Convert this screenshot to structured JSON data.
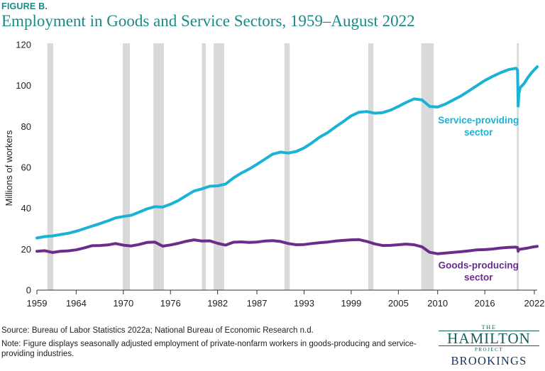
{
  "figure_label": "FIGURE B.",
  "title": "Employment in Goods and Service Sectors, 1959–August 2022",
  "source": "Source: Bureau of Labor Statistics 2022a; National Bureau of Economic Research n.d.",
  "note": "Note: Figure displays seasonally adjusted employment of private-nonfarm workers in goods-producing and service-providing industries.",
  "logo": {
    "the": "THE",
    "name": "HAMILTON",
    "project": "PROJECT",
    "org": "BROOKINGS"
  },
  "colors": {
    "service": "#1ab3d5",
    "goods": "#6b2d8c",
    "recession": "#d9d9d9",
    "accent": "#1a8a84"
  },
  "chart_data": {
    "type": "line",
    "title": "Employment in Goods and Service Sectors, 1959–August 2022",
    "xlabel": "",
    "ylabel": "Millions of workers",
    "xlim": [
      1959,
      2022.67
    ],
    "ylim": [
      0,
      120
    ],
    "yticks": [
      0,
      20,
      40,
      60,
      80,
      100,
      120
    ],
    "xticks": [
      1959,
      1964,
      1970,
      1976,
      1982,
      1987,
      1993,
      1999,
      2005,
      2010,
      2016,
      2022
    ],
    "grid": false,
    "legend": "inline labels",
    "recessions": [
      [
        1960.33,
        1961.08
      ],
      [
        1969.92,
        1970.83
      ],
      [
        1973.83,
        1975.17
      ],
      [
        1980.0,
        1980.5
      ],
      [
        1981.5,
        1982.83
      ],
      [
        1990.5,
        1991.17
      ],
      [
        2001.17,
        2001.83
      ],
      [
        2007.92,
        2009.5
      ],
      [
        2020.08,
        2020.33
      ]
    ],
    "series": [
      {
        "name": "Service-providing sector",
        "label_lines": [
          "Service-providing",
          "sector"
        ],
        "label_at": [
          2015.2,
          81.5
        ],
        "x": [
          1959,
          1960,
          1961,
          1962,
          1963,
          1964,
          1965,
          1966,
          1967,
          1968,
          1969,
          1970,
          1971,
          1972,
          1973,
          1974,
          1975,
          1976,
          1977,
          1978,
          1979,
          1980,
          1981,
          1982,
          1983,
          1984,
          1985,
          1986,
          1987,
          1988,
          1989,
          1990,
          1991,
          1992,
          1993,
          1994,
          1995,
          1996,
          1997,
          1998,
          1999,
          2000,
          2001,
          2002,
          2003,
          2004,
          2005,
          2006,
          2007,
          2008,
          2009,
          2010,
          2011,
          2012,
          2013,
          2014,
          2015,
          2016,
          2017,
          2018,
          2019,
          2020,
          2020.17,
          2020.25,
          2020.33,
          2020.5,
          2021,
          2021.5,
          2022,
          2022.67
        ],
        "values": [
          25.5,
          26.2,
          26.5,
          27.2,
          27.8,
          28.8,
          30.0,
          31.3,
          32.5,
          33.8,
          35.3,
          36.0,
          36.6,
          38.1,
          39.7,
          40.8,
          40.6,
          42.0,
          43.8,
          46.2,
          48.5,
          49.5,
          50.8,
          51.0,
          51.8,
          54.8,
          57.2,
          59.2,
          61.5,
          64.0,
          66.5,
          67.5,
          67.0,
          67.8,
          69.5,
          72.0,
          74.8,
          77.0,
          79.8,
          82.4,
          85.2,
          87.0,
          87.3,
          86.5,
          86.8,
          88.0,
          89.8,
          91.8,
          93.5,
          93.0,
          89.8,
          89.5,
          91.0,
          93.0,
          95.0,
          97.5,
          100.0,
          102.5,
          104.5,
          106.3,
          107.8,
          108.5,
          107.5,
          90.0,
          96.0,
          99.0,
          101.0,
          104.0,
          106.5,
          109.2
        ]
      },
      {
        "name": "Goods-producing sector",
        "label_lines": [
          "Goods-producing",
          "sector"
        ],
        "label_at": [
          2015.2,
          10.5
        ],
        "x": [
          1959,
          1960,
          1961,
          1962,
          1963,
          1964,
          1965,
          1966,
          1967,
          1968,
          1969,
          1970,
          1971,
          1972,
          1973,
          1974,
          1975,
          1976,
          1977,
          1978,
          1979,
          1980,
          1981,
          1982,
          1983,
          1984,
          1985,
          1986,
          1987,
          1988,
          1989,
          1990,
          1991,
          1992,
          1993,
          1994,
          1995,
          1996,
          1997,
          1998,
          1999,
          2000,
          2001,
          2002,
          2003,
          2004,
          2005,
          2006,
          2007,
          2008,
          2009,
          2010,
          2011,
          2012,
          2013,
          2014,
          2015,
          2016,
          2017,
          2018,
          2019,
          2020,
          2020.17,
          2020.25,
          2020.33,
          2020.5,
          2021,
          2021.5,
          2022,
          2022.67
        ],
        "values": [
          19.0,
          19.3,
          18.4,
          19.0,
          19.2,
          19.7,
          20.6,
          21.7,
          21.8,
          22.1,
          22.8,
          22.0,
          21.6,
          22.3,
          23.3,
          23.5,
          21.5,
          22.1,
          22.9,
          23.9,
          24.6,
          24.0,
          24.1,
          22.9,
          22.0,
          23.4,
          23.6,
          23.3,
          23.5,
          24.0,
          24.2,
          23.8,
          22.8,
          22.2,
          22.3,
          22.8,
          23.2,
          23.5,
          24.0,
          24.3,
          24.6,
          24.7,
          23.8,
          22.6,
          21.8,
          21.9,
          22.2,
          22.5,
          22.2,
          21.2,
          18.5,
          17.8,
          18.1,
          18.5,
          18.8,
          19.2,
          19.7,
          19.8,
          20.1,
          20.6,
          20.9,
          21.0,
          20.8,
          19.0,
          19.8,
          20.0,
          20.3,
          20.6,
          21.0,
          21.4
        ]
      }
    ]
  }
}
